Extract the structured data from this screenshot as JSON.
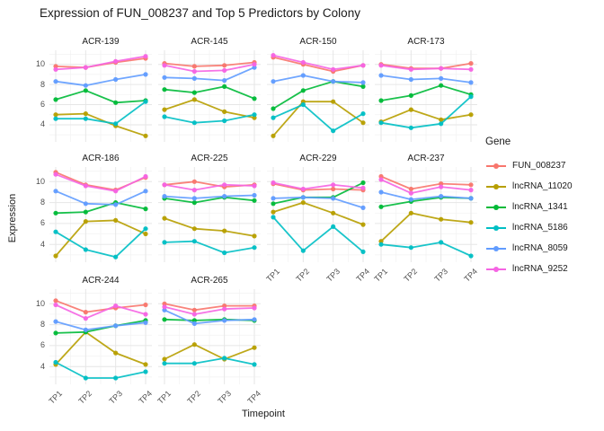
{
  "title": "Expression of FUN_008237 and Top 5 Predictors by Colony",
  "axes": {
    "x_title": "Timepoint",
    "y_title": "Expression"
  },
  "legend": {
    "title": "Gene"
  },
  "chart_data": {
    "type": "line",
    "title": "Expression of FUN_008237 and Top 5 Predictors by Colony",
    "xlabel": "Timepoint",
    "ylabel": "Expression",
    "x": [
      "TP1",
      "TP2",
      "TP3",
      "TP4"
    ],
    "ylim": [
      2.3,
      11.4
    ],
    "y_ticks": [
      10,
      8,
      6,
      4
    ],
    "y_minor": [
      3,
      5,
      7,
      9,
      11
    ],
    "grid": "on",
    "legend_position": "right",
    "genes": [
      {
        "name": "FUN_008237",
        "color": "#F8766D"
      },
      {
        "name": "lncRNA_11020",
        "color": "#B79F00"
      },
      {
        "name": "lncRNA_1341",
        "color": "#00BA38"
      },
      {
        "name": "lncRNA_5186",
        "color": "#00BFC4"
      },
      {
        "name": "lncRNA_8059",
        "color": "#619CFF"
      },
      {
        "name": "lncRNA_9252",
        "color": "#F564E3"
      }
    ],
    "facets": [
      {
        "name": "ACR-139",
        "values": {
          "FUN_008237": [
            9.8,
            9.7,
            10.2,
            10.6
          ],
          "lncRNA_11020": [
            5.0,
            5.1,
            3.9,
            2.9
          ],
          "lncRNA_1341": [
            6.5,
            7.4,
            6.2,
            6.4
          ],
          "lncRNA_5186": [
            4.6,
            4.6,
            4.1,
            6.3
          ],
          "lncRNA_8059": [
            8.3,
            7.9,
            8.5,
            9.0
          ],
          "lncRNA_9252": [
            9.5,
            9.7,
            10.3,
            10.8
          ]
        }
      },
      {
        "name": "ACR-145",
        "values": {
          "FUN_008237": [
            10.1,
            9.8,
            9.9,
            10.2
          ],
          "lncRNA_11020": [
            5.5,
            6.5,
            5.3,
            4.7
          ],
          "lncRNA_1341": [
            7.5,
            7.2,
            7.8,
            6.6
          ],
          "lncRNA_5186": [
            4.8,
            4.2,
            4.4,
            5.0
          ],
          "lncRNA_8059": [
            8.7,
            8.6,
            8.4,
            9.7
          ],
          "lncRNA_9252": [
            9.9,
            9.3,
            9.4,
            10.0
          ]
        }
      },
      {
        "name": "ACR-150",
        "values": {
          "FUN_008237": [
            10.7,
            10.0,
            9.3,
            9.9
          ],
          "lncRNA_11020": [
            2.9,
            6.3,
            6.3,
            4.2
          ],
          "lncRNA_1341": [
            5.6,
            7.4,
            8.3,
            7.8
          ],
          "lncRNA_5186": [
            4.7,
            6.0,
            3.4,
            5.1
          ],
          "lncRNA_8059": [
            8.3,
            8.9,
            8.3,
            8.2
          ],
          "lncRNA_9252": [
            10.9,
            10.2,
            9.5,
            9.9
          ]
        }
      },
      {
        "name": "ACR-173",
        "values": {
          "FUN_008237": [
            10.0,
            9.6,
            9.6,
            10.1
          ],
          "lncRNA_11020": [
            4.3,
            5.5,
            4.5,
            5.0
          ],
          "lncRNA_1341": [
            6.4,
            6.9,
            7.9,
            7.0
          ],
          "lncRNA_5186": [
            4.2,
            3.7,
            4.1,
            6.8
          ],
          "lncRNA_8059": [
            8.9,
            8.5,
            8.6,
            8.2
          ],
          "lncRNA_9252": [
            9.9,
            9.5,
            9.6,
            9.5
          ]
        }
      },
      {
        "name": "ACR-186",
        "values": {
          "FUN_008237": [
            10.9,
            9.7,
            9.2,
            10.4
          ],
          "lncRNA_11020": [
            2.9,
            6.2,
            6.3,
            5.0
          ],
          "lncRNA_1341": [
            7.0,
            7.1,
            8.0,
            7.4
          ],
          "lncRNA_5186": [
            5.2,
            3.5,
            2.8,
            5.5
          ],
          "lncRNA_8059": [
            9.1,
            7.9,
            7.8,
            9.1
          ],
          "lncRNA_9252": [
            10.7,
            9.6,
            9.1,
            10.5
          ]
        }
      },
      {
        "name": "ACR-225",
        "values": {
          "FUN_008237": [
            9.7,
            10.0,
            9.5,
            9.7
          ],
          "lncRNA_11020": [
            6.5,
            5.5,
            5.3,
            4.8
          ],
          "lncRNA_1341": [
            8.4,
            8.0,
            8.5,
            8.2
          ],
          "lncRNA_5186": [
            4.2,
            4.3,
            3.2,
            3.7
          ],
          "lncRNA_8059": [
            8.6,
            8.4,
            8.6,
            8.7
          ],
          "lncRNA_9252": [
            9.7,
            9.2,
            9.7,
            9.6
          ]
        }
      },
      {
        "name": "ACR-229",
        "values": {
          "FUN_008237": [
            9.8,
            9.2,
            9.3,
            9.2
          ],
          "lncRNA_11020": [
            7.1,
            8.0,
            7.0,
            5.9
          ],
          "lncRNA_1341": [
            7.9,
            8.5,
            8.5,
            9.9
          ],
          "lncRNA_5186": [
            6.6,
            3.4,
            5.7,
            3.3
          ],
          "lncRNA_8059": [
            8.4,
            8.5,
            8.4,
            7.5
          ],
          "lncRNA_9252": [
            9.9,
            9.3,
            9.7,
            9.4
          ]
        }
      },
      {
        "name": "ACR-237",
        "values": {
          "FUN_008237": [
            10.5,
            9.3,
            9.8,
            9.7
          ],
          "lncRNA_11020": [
            4.3,
            7.0,
            6.4,
            6.1
          ],
          "lncRNA_1341": [
            7.6,
            8.1,
            8.5,
            8.4
          ],
          "lncRNA_5186": [
            4.0,
            3.7,
            4.2,
            2.9
          ],
          "lncRNA_8059": [
            9.0,
            8.3,
            8.6,
            8.4
          ],
          "lncRNA_9252": [
            10.2,
            8.9,
            9.5,
            9.2
          ]
        }
      },
      {
        "name": "ACR-244",
        "values": {
          "FUN_008237": [
            10.3,
            9.2,
            9.6,
            9.9
          ],
          "lncRNA_11020": [
            4.2,
            7.3,
            5.3,
            4.2
          ],
          "lncRNA_1341": [
            7.2,
            7.3,
            7.9,
            8.4
          ],
          "lncRNA_5186": [
            4.4,
            2.9,
            2.9,
            3.5
          ],
          "lncRNA_8059": [
            8.3,
            7.5,
            7.9,
            8.2
          ],
          "lncRNA_9252": [
            9.9,
            8.6,
            9.8,
            9.0
          ]
        }
      },
      {
        "name": "ACR-265",
        "values": {
          "FUN_008237": [
            10.0,
            9.4,
            9.8,
            9.8
          ],
          "lncRNA_11020": [
            4.7,
            6.1,
            4.7,
            5.8
          ],
          "lncRNA_1341": [
            8.5,
            8.4,
            8.5,
            8.4
          ],
          "lncRNA_5186": [
            4.3,
            4.3,
            4.8,
            4.2
          ],
          "lncRNA_8059": [
            9.4,
            8.1,
            8.4,
            8.5
          ],
          "lncRNA_9252": [
            9.7,
            9.0,
            9.5,
            9.6
          ]
        }
      }
    ],
    "style": {
      "grid_major_color": "#E6E6E6",
      "grid_minor_color": "#F2F2F2",
      "background": "#FFFFFF"
    }
  }
}
